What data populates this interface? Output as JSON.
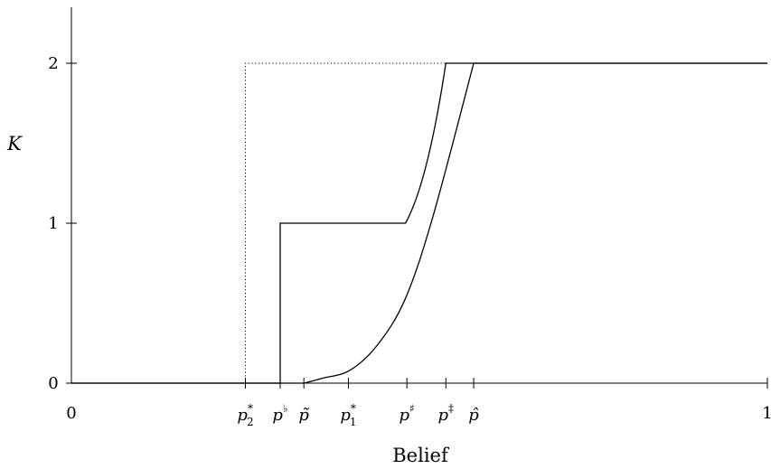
{
  "chart_data": {
    "type": "line",
    "xlabel": "Belief",
    "ylabel": "K",
    "xlim": [
      0,
      1
    ],
    "ylim": [
      0,
      2.3
    ],
    "grid": false,
    "x_ticks": [
      {
        "value": 0,
        "label": "0"
      },
      {
        "value": 1,
        "label": "1"
      }
    ],
    "y_ticks": [
      {
        "value": 0,
        "label": "0"
      },
      {
        "value": 1,
        "label": "1"
      },
      {
        "value": 2,
        "label": "2"
      }
    ],
    "belief_markers": [
      {
        "value": 0.25,
        "base": "p",
        "sup": "*",
        "sub": "2"
      },
      {
        "value": 0.3,
        "base": "p̃",
        "sup": "♭",
        "sub": "",
        "display": "p",
        "is_flat": true
      },
      {
        "value": 0.334,
        "base": "p̃",
        "sup": "",
        "sub": ""
      },
      {
        "value": 0.398,
        "base": "p",
        "sup": "*",
        "sub": "1"
      },
      {
        "value": 0.482,
        "base": "p",
        "sup": "♯",
        "sub": ""
      },
      {
        "value": 0.538,
        "base": "p",
        "sup": "‡",
        "sub": ""
      },
      {
        "value": 0.578,
        "base": "p̂",
        "sup": "",
        "sub": ""
      }
    ],
    "series": [
      {
        "style": "solid",
        "x": [
          0,
          0.3,
          0.3,
          0.48,
          0.538,
          1.0
        ],
        "y": [
          0,
          0,
          1,
          1,
          2,
          2
        ],
        "curvature": "convex-between-0.48-and-0.538"
      },
      {
        "style": "solid",
        "x": [
          0,
          0.334,
          0.36,
          0.4,
          0.44,
          0.48,
          0.52,
          0.578,
          1.0
        ],
        "y": [
          0,
          0,
          0.03,
          0.08,
          0.24,
          0.53,
          1.05,
          2,
          2
        ],
        "curvature": "smooth-convex"
      },
      {
        "style": "dotted",
        "x": [
          0.25,
          0.25,
          0.538
        ],
        "y": [
          0,
          2,
          2
        ]
      },
      {
        "style": "dotted",
        "x": [
          0.3,
          0.3
        ],
        "y": [
          0,
          1
        ]
      }
    ]
  }
}
